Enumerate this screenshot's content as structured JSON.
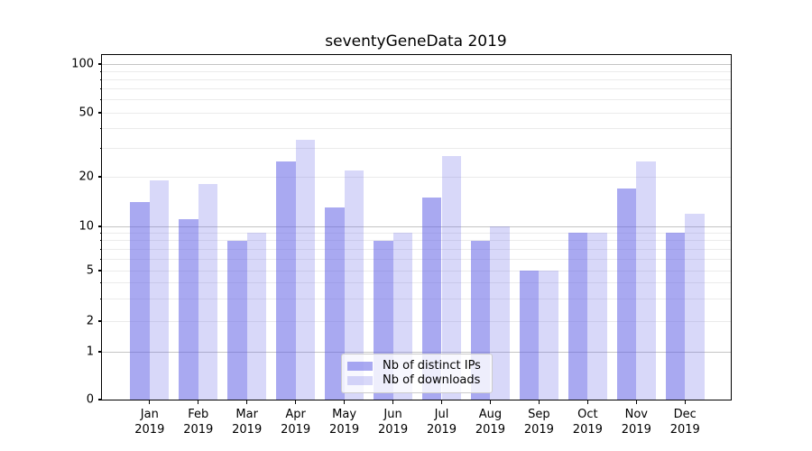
{
  "chart_data": {
    "type": "bar",
    "title": "seventyGeneData 2019",
    "categories": [
      "Jan",
      "Feb",
      "Mar",
      "Apr",
      "May",
      "Jun",
      "Jul",
      "Aug",
      "Sep",
      "Oct",
      "Nov",
      "Dec"
    ],
    "x_year_label": "2019",
    "series": [
      {
        "name": "Nb of distinct IPs",
        "color": "rgba(99,99,230,0.55)",
        "values": [
          14,
          11,
          8,
          25,
          13,
          8,
          15,
          8,
          5,
          9,
          17,
          9
        ]
      },
      {
        "name": "Nb of downloads",
        "color": "rgba(99,99,230,0.25)",
        "values": [
          19,
          18,
          9,
          34,
          22,
          9,
          27,
          10,
          5,
          9,
          25,
          12
        ]
      }
    ],
    "yscale": "log-like (0,1,2,5,10,20,50,100)",
    "ylim": [
      0,
      140
    ],
    "ytick_values": [
      0,
      1,
      2,
      5,
      10,
      20,
      50,
      100
    ],
    "major_gridline_values": [
      1,
      10,
      100
    ],
    "light_gridline_values": [
      2,
      3,
      4,
      5,
      6,
      7,
      8,
      9,
      20,
      30,
      40,
      50,
      60,
      70,
      80,
      90
    ],
    "minor_tick_values": [
      3,
      4,
      6,
      7,
      8,
      9,
      30,
      40,
      60,
      70,
      80,
      90
    ],
    "grid": "on",
    "legend_position": "bottom-center",
    "colors": {
      "spine": "#000000",
      "major_grid": "#c4c4c4",
      "light_grid": "#ebebeb",
      "background": "#ffffff"
    }
  }
}
